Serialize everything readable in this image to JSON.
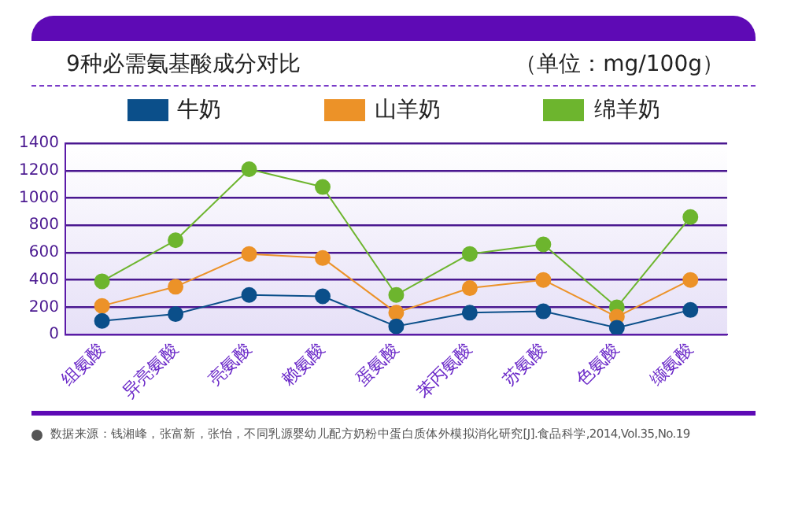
{
  "chart_data": {
    "type": "line",
    "title": "9种必需氨基酸成分对比",
    "subtitle": "（单位：mg/100g）",
    "categories": [
      "组氨酸",
      "异亮氨酸",
      "亮氨酸",
      "赖氨酸",
      "蛋氨酸",
      "苯丙氨酸",
      "苏氨酸",
      "色氨酸",
      "缬氨酸"
    ],
    "series": [
      {
        "name": "牛奶",
        "color": "#0b4f8a",
        "values": [
          100,
          150,
          290,
          280,
          60,
          160,
          170,
          50,
          180
        ]
      },
      {
        "name": "山羊奶",
        "color": "#ec9228",
        "values": [
          210,
          350,
          590,
          560,
          160,
          340,
          400,
          130,
          400
        ]
      },
      {
        "name": "绵羊奶",
        "color": "#6db52e",
        "values": [
          390,
          690,
          1210,
          1080,
          290,
          590,
          660,
          200,
          860
        ]
      }
    ],
    "ylim": [
      0,
      1400
    ],
    "yticks": [
      0,
      200,
      400,
      600,
      800,
      1000,
      1200,
      1400
    ],
    "grid": "y",
    "legend": "top",
    "marker": "circle",
    "line_style": "solid",
    "annotations": [
      "数据来源：钱湘峰，张富新，张怡，不同乳源婴幼儿配方奶粉中蛋白质体外模拟消化研究[J].食品科学,2014,Vol.35,No.19"
    ]
  }
}
